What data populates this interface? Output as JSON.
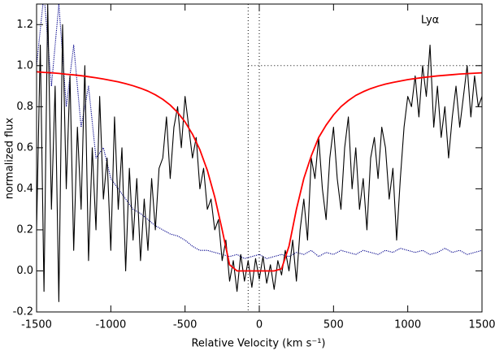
{
  "chart_data": {
    "type": "line",
    "xlabel": "Relative Velocity (km s⁻¹)",
    "ylabel": "normalized flux",
    "annotation": {
      "text": "Lyα",
      "x": 1150,
      "y": 1.22
    },
    "xlim": [
      -1500,
      1500
    ],
    "ylim": [
      -0.2,
      1.3
    ],
    "xticks": [
      -1500,
      -1000,
      -500,
      0,
      500,
      1000,
      1500
    ],
    "yticks": [
      -0.2,
      {
        "value": 0,
        "label": "0.0"
      },
      0.2,
      0.4,
      0.6,
      0.8,
      {
        "value": 1,
        "label": "1.0"
      },
      1.2
    ],
    "vlines": [
      -75,
      0
    ],
    "hline": {
      "y": 1,
      "xmin": -75,
      "xmax": 1500
    },
    "series": [
      {
        "color": "#00008b",
        "style": "dotted",
        "x": [
          -1500,
          -1450,
          -1400,
          -1350,
          -1300,
          -1250,
          -1200,
          -1150,
          -1100,
          -1050,
          -1000,
          -950,
          -900,
          -850,
          -800,
          -750,
          -700,
          -650,
          -600,
          -550,
          -500,
          -450,
          -400,
          -350,
          -300,
          -250,
          -200,
          -150,
          -100,
          -50,
          0,
          50,
          100,
          150,
          200,
          250,
          300,
          350,
          400,
          450,
          500,
          550,
          600,
          650,
          700,
          750,
          800,
          850,
          900,
          950,
          1000,
          1050,
          1100,
          1150,
          1200,
          1250,
          1300,
          1350,
          1400,
          1450,
          1500
        ],
        "values": [
          1.0,
          1.35,
          0.9,
          1.3,
          0.8,
          1.1,
          0.7,
          0.9,
          0.55,
          0.6,
          0.45,
          0.4,
          0.35,
          0.3,
          0.28,
          0.25,
          0.22,
          0.2,
          0.18,
          0.17,
          0.15,
          0.12,
          0.1,
          0.1,
          0.09,
          0.08,
          0.07,
          0.08,
          0.06,
          0.07,
          0.08,
          0.06,
          0.07,
          0.08,
          0.07,
          0.09,
          0.08,
          0.1,
          0.07,
          0.09,
          0.08,
          0.1,
          0.09,
          0.08,
          0.1,
          0.09,
          0.08,
          0.1,
          0.09,
          0.11,
          0.1,
          0.09,
          0.1,
          0.08,
          0.09,
          0.11,
          0.09,
          0.1,
          0.08,
          0.09,
          0.1
        ]
      },
      {
        "color": "#000000",
        "style": "solid",
        "x": [
          -1500,
          -1475,
          -1450,
          -1425,
          -1400,
          -1375,
          -1350,
          -1325,
          -1300,
          -1275,
          -1250,
          -1225,
          -1200,
          -1175,
          -1150,
          -1125,
          -1100,
          -1075,
          -1050,
          -1025,
          -1000,
          -975,
          -950,
          -925,
          -900,
          -875,
          -850,
          -825,
          -800,
          -775,
          -750,
          -725,
          -700,
          -675,
          -650,
          -625,
          -600,
          -575,
          -550,
          -525,
          -500,
          -475,
          -450,
          -425,
          -400,
          -375,
          -350,
          -325,
          -300,
          -275,
          -250,
          -225,
          -200,
          -175,
          -150,
          -125,
          -100,
          -75,
          -50,
          -25,
          0,
          25,
          50,
          75,
          100,
          125,
          150,
          175,
          200,
          225,
          250,
          275,
          300,
          325,
          350,
          375,
          400,
          425,
          450,
          475,
          500,
          525,
          550,
          575,
          600,
          625,
          650,
          675,
          700,
          725,
          750,
          775,
          800,
          825,
          850,
          875,
          900,
          925,
          950,
          975,
          1000,
          1025,
          1050,
          1075,
          1100,
          1125,
          1150,
          1175,
          1200,
          1225,
          1250,
          1275,
          1300,
          1325,
          1350,
          1375,
          1400,
          1425,
          1450,
          1475,
          1500
        ],
        "values": [
          0.2,
          1.1,
          -0.1,
          1.3,
          0.3,
          0.9,
          -0.15,
          1.2,
          0.4,
          0.95,
          0.1,
          0.7,
          0.3,
          1.0,
          0.05,
          0.6,
          0.2,
          0.85,
          0.35,
          0.55,
          0.1,
          0.75,
          0.3,
          0.6,
          0.0,
          0.5,
          0.15,
          0.45,
          0.05,
          0.35,
          0.1,
          0.45,
          0.2,
          0.5,
          0.55,
          0.75,
          0.45,
          0.7,
          0.8,
          0.6,
          0.85,
          0.7,
          0.55,
          0.65,
          0.4,
          0.5,
          0.3,
          0.35,
          0.2,
          0.25,
          0.05,
          0.15,
          -0.05,
          0.05,
          -0.1,
          0.08,
          -0.05,
          0.05,
          -0.08,
          0.06,
          -0.04,
          0.07,
          -0.06,
          0.03,
          -0.09,
          0.05,
          -0.02,
          0.1,
          0.0,
          0.15,
          -0.05,
          0.2,
          0.35,
          0.15,
          0.55,
          0.45,
          0.65,
          0.4,
          0.25,
          0.55,
          0.7,
          0.45,
          0.3,
          0.6,
          0.75,
          0.4,
          0.6,
          0.3,
          0.45,
          0.2,
          0.55,
          0.65,
          0.45,
          0.7,
          0.6,
          0.35,
          0.5,
          0.15,
          0.45,
          0.7,
          0.85,
          0.8,
          0.95,
          0.75,
          1.0,
          0.85,
          1.1,
          0.7,
          0.9,
          0.65,
          0.8,
          0.55,
          0.75,
          0.9,
          0.7,
          0.85,
          1.0,
          0.75,
          0.95,
          0.8,
          0.85
        ]
      },
      {
        "color": "#ff0000",
        "style": "solid",
        "x": [
          -1500,
          -1450,
          -1400,
          -1350,
          -1300,
          -1250,
          -1200,
          -1150,
          -1100,
          -1050,
          -1000,
          -950,
          -900,
          -850,
          -800,
          -750,
          -700,
          -650,
          -600,
          -550,
          -500,
          -450,
          -400,
          -350,
          -300,
          -250,
          -200,
          -150,
          -100,
          -50,
          0,
          50,
          100,
          150,
          200,
          250,
          300,
          350,
          400,
          450,
          500,
          550,
          600,
          650,
          700,
          750,
          800,
          850,
          900,
          950,
          1000,
          1050,
          1100,
          1150,
          1200,
          1250,
          1300,
          1350,
          1400,
          1450,
          1500
        ],
        "values": [
          0.97,
          0.967,
          0.965,
          0.962,
          0.958,
          0.955,
          0.951,
          0.946,
          0.941,
          0.935,
          0.928,
          0.921,
          0.912,
          0.902,
          0.89,
          0.876,
          0.858,
          0.836,
          0.808,
          0.772,
          0.726,
          0.666,
          0.59,
          0.49,
          0.36,
          0.2,
          0.03,
          0,
          0,
          0,
          0,
          0,
          0,
          0.01,
          0.12,
          0.3,
          0.45,
          0.56,
          0.65,
          0.71,
          0.76,
          0.8,
          0.83,
          0.855,
          0.873,
          0.888,
          0.9,
          0.91,
          0.918,
          0.925,
          0.932,
          0.937,
          0.942,
          0.946,
          0.95,
          0.953,
          0.956,
          0.959,
          0.961,
          0.963,
          0.965
        ]
      }
    ]
  }
}
